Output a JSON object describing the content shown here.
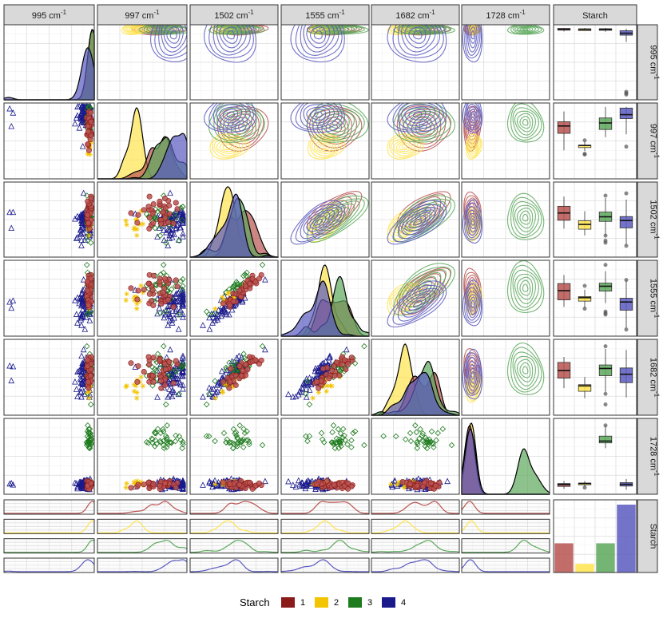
{
  "chart_data": {
    "type": "scatterplot-matrix",
    "variables": [
      "995",
      "997",
      "1502",
      "1555",
      "1682",
      "1728"
    ],
    "unit_label": "cm",
    "unit_exponent": "-1",
    "group_variable": "Starch",
    "groups": [
      {
        "name": "1",
        "color": "#8B1A1A",
        "fill": "#B85450",
        "marker": "circle"
      },
      {
        "name": "2",
        "color": "#F2C500",
        "fill": "#FFE44D",
        "marker": "asterisk"
      },
      {
        "name": "3",
        "color": "#1E7B1E",
        "fill": "#5CA85C",
        "marker": "diamond"
      },
      {
        "name": "4",
        "color": "#1A1A8C",
        "fill": "#5A5AC0",
        "marker": "triangle"
      }
    ],
    "group_counts": {
      "1": 37,
      "2": 11,
      "3": 37,
      "4": 86
    },
    "density_peaks": {
      "995": {
        "1": 0.96,
        "2": 0.9,
        "3": 0.93,
        "4": 0.55
      },
      "997": {
        "1": 0.9,
        "2": 0.45,
        "3": 0.82,
        "4": 0.95
      },
      "1502": {
        "1": 0.55,
        "2": 0.42,
        "3": 0.62,
        "4": 0.48
      },
      "1555": {
        "1": 0.46,
        "2": 0.33,
        "3": 0.62,
        "4": 0.48
      },
      "1682": {
        "1": 0.5,
        "2": 0.25,
        "3": 0.64,
        "4": 0.58
      },
      "1728": {
        "1": 0.05,
        "2": 0.04,
        "3": 0.75,
        "4": 0.04
      }
    },
    "medians": {
      "995": {
        "1": 0.98,
        "2": 0.94,
        "3": 0.97,
        "4": 0.6
      },
      "997": {
        "1": 0.68,
        "2": 0.42,
        "3": 0.77,
        "4": 0.9
      },
      "1502": {
        "1": 0.58,
        "2": 0.45,
        "3": 0.55,
        "4": 0.44
      },
      "1555": {
        "1": 0.58,
        "2": 0.52,
        "3": 0.68,
        "4": 0.4
      },
      "1682": {
        "1": 0.57,
        "2": 0.38,
        "3": 0.63,
        "4": 0.5
      },
      "1728": {
        "1": 0.12,
        "2": 0.1,
        "3": 0.72,
        "4": 0.08
      }
    },
    "legend": {
      "title": "Starch",
      "position": "bottom",
      "labels": [
        "1",
        "2",
        "3",
        "4"
      ]
    }
  }
}
